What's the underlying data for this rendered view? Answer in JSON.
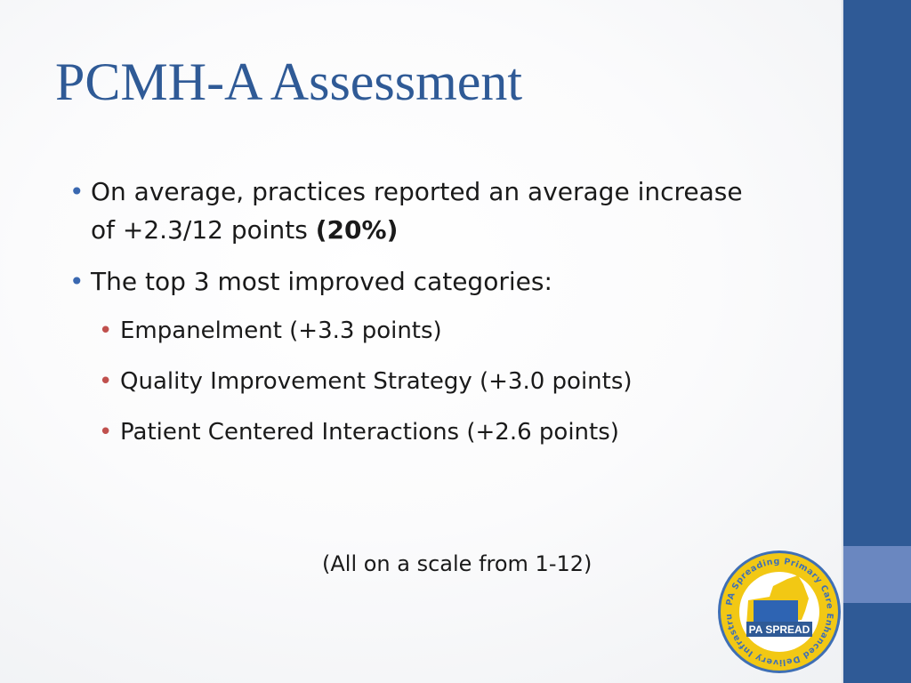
{
  "slide": {
    "title": "PCMH-A Assessment",
    "bullets": [
      {
        "text": "On average, practices reported an average increase of +2.3/12 points",
        "emphasis": "(20%)"
      },
      {
        "text": "The top 3 most improved categories:"
      }
    ],
    "subbullets": [
      "Empanelment (+3.3 points)",
      "Quality Improvement Strategy (+3.0 points)",
      "Patient Centered Interactions (+2.6 points)"
    ],
    "note": "(All on a scale from 1-12)",
    "logo": {
      "ring_text": "PA Spreading Primary Care Enhanced Delivery Infrastructure",
      "banner": "PA SPREAD"
    }
  },
  "colors": {
    "title": "#2f5a96",
    "sidebar": "#2f5a96",
    "sidebar_accent": "#6a87c0",
    "bullet": "#3a68b0",
    "subbullet": "#c0504d",
    "logo_ring": "#3f6fb4",
    "logo_fill": "#f2c814"
  }
}
